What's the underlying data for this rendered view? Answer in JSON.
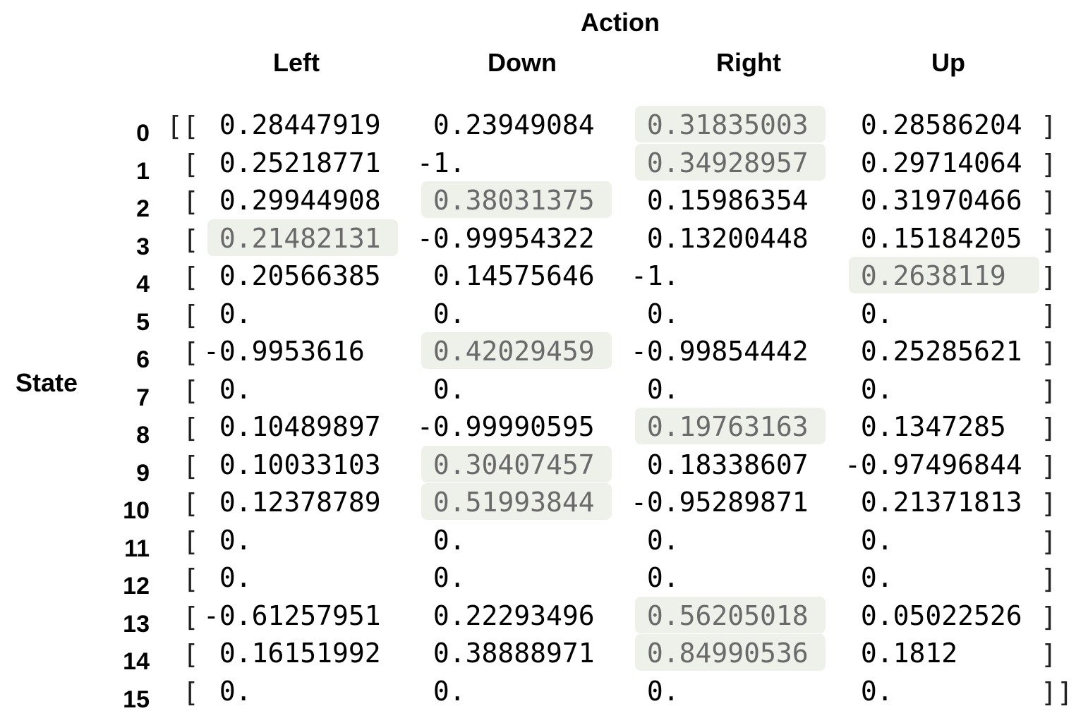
{
  "headers": {
    "action": "Action",
    "state": "State",
    "columns": [
      "Left",
      "Down",
      "Right",
      "Up"
    ]
  },
  "rows": [
    {
      "label": "0",
      "open": "[[",
      "values": [
        " 0.28447919",
        " 0.23949084",
        " 0.31835003",
        " 0.28586204"
      ],
      "close": "]",
      "highlight": 2
    },
    {
      "label": "1",
      "open": " [",
      "values": [
        " 0.25218771",
        "-1.",
        " 0.34928957",
        " 0.29714064"
      ],
      "close": "]",
      "highlight": 2
    },
    {
      "label": "2",
      "open": " [",
      "values": [
        " 0.29944908",
        " 0.38031375",
        " 0.15986354",
        " 0.31970466"
      ],
      "close": "]",
      "highlight": 1
    },
    {
      "label": "3",
      "open": " [",
      "values": [
        " 0.21482131",
        "-0.99954322",
        " 0.13200448",
        " 0.15184205"
      ],
      "close": "]",
      "highlight": 0
    },
    {
      "label": "4",
      "open": " [",
      "values": [
        " 0.20566385",
        " 0.14575646",
        "-1.",
        " 0.2638119"
      ],
      "close": "]",
      "highlight": 3
    },
    {
      "label": "5",
      "open": " [",
      "values": [
        " 0.",
        " 0.",
        " 0.",
        " 0."
      ],
      "close": "]",
      "highlight": null
    },
    {
      "label": "6",
      "open": " [",
      "values": [
        "-0.9953616",
        " 0.42029459",
        "-0.99854442",
        " 0.25285621"
      ],
      "close": "]",
      "highlight": 1
    },
    {
      "label": "7",
      "open": " [",
      "values": [
        " 0.",
        " 0.",
        " 0.",
        " 0."
      ],
      "close": "]",
      "highlight": null
    },
    {
      "label": "8",
      "open": " [",
      "values": [
        " 0.10489897",
        "-0.99990595",
        " 0.19763163",
        " 0.1347285"
      ],
      "close": "]",
      "highlight": 2
    },
    {
      "label": "9",
      "open": " [",
      "values": [
        " 0.10033103",
        " 0.30407457",
        " 0.18338607",
        "-0.97496844"
      ],
      "close": "]",
      "highlight": 1
    },
    {
      "label": "10",
      "open": " [",
      "values": [
        " 0.12378789",
        " 0.51993844",
        "-0.95289871",
        " 0.21371813"
      ],
      "close": "]",
      "highlight": 1
    },
    {
      "label": "11",
      "open": " [",
      "values": [
        " 0.",
        " 0.",
        " 0.",
        " 0."
      ],
      "close": "]",
      "highlight": null
    },
    {
      "label": "12",
      "open": " [",
      "values": [
        " 0.",
        " 0.",
        " 0.",
        " 0."
      ],
      "close": "]",
      "highlight": null
    },
    {
      "label": "13",
      "open": " [",
      "values": [
        "-0.61257951",
        " 0.22293496",
        " 0.56205018",
        " 0.05022526"
      ],
      "close": "]",
      "highlight": 2
    },
    {
      "label": "14",
      "open": " [",
      "values": [
        " 0.16151992",
        " 0.38888971",
        " 0.84990536",
        " 0.1812"
      ],
      "close": "]",
      "highlight": 2
    },
    {
      "label": "15",
      "open": " [",
      "values": [
        " 0.",
        " 0.",
        " 0.",
        " 0."
      ],
      "close": "]]",
      "highlight": null
    }
  ],
  "colors": {
    "highlight_background": "#eef1ea",
    "highlight_text": "#6a6a6a",
    "text": "#000000"
  }
}
